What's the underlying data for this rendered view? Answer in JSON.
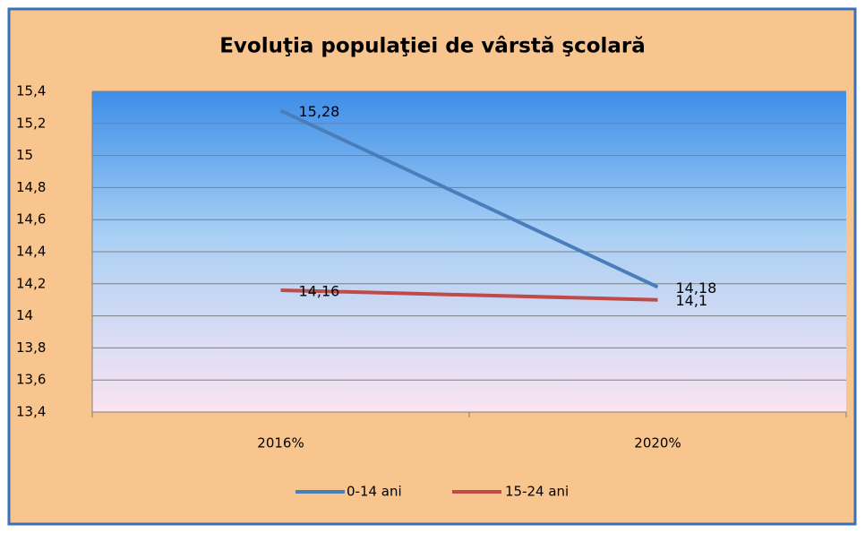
{
  "chart_data": {
    "type": "line",
    "title": "Evoluţia populaţiei de vârstă şcolară",
    "categories": [
      "2016%",
      "2020%"
    ],
    "series": [
      {
        "name": "0-14 ani",
        "color": "#4a7ebb",
        "values": [
          15.28,
          14.18
        ],
        "value_labels": [
          "15,28",
          "14,18"
        ]
      },
      {
        "name": "15-24 ani",
        "color": "#be4b48",
        "values": [
          14.16,
          14.1
        ],
        "value_labels": [
          "14,16",
          "14,1"
        ]
      }
    ],
    "ylim": [
      13.4,
      15.4
    ],
    "yticks": [
      {
        "value": 13.4,
        "label": "13,4"
      },
      {
        "value": 13.6,
        "label": "13,6"
      },
      {
        "value": 13.8,
        "label": "13,8"
      },
      14,
      {
        "value": 14.2,
        "label": "14,2"
      },
      {
        "value": 14.4,
        "label": "14,4"
      },
      {
        "value": 14.6,
        "label": "14,6"
      },
      {
        "value": 14.8,
        "label": "14,8"
      },
      15,
      {
        "value": 15.2,
        "label": "15,2"
      },
      {
        "value": 15.4,
        "label": "15,4"
      }
    ],
    "grid": true,
    "legend": "bottom"
  }
}
